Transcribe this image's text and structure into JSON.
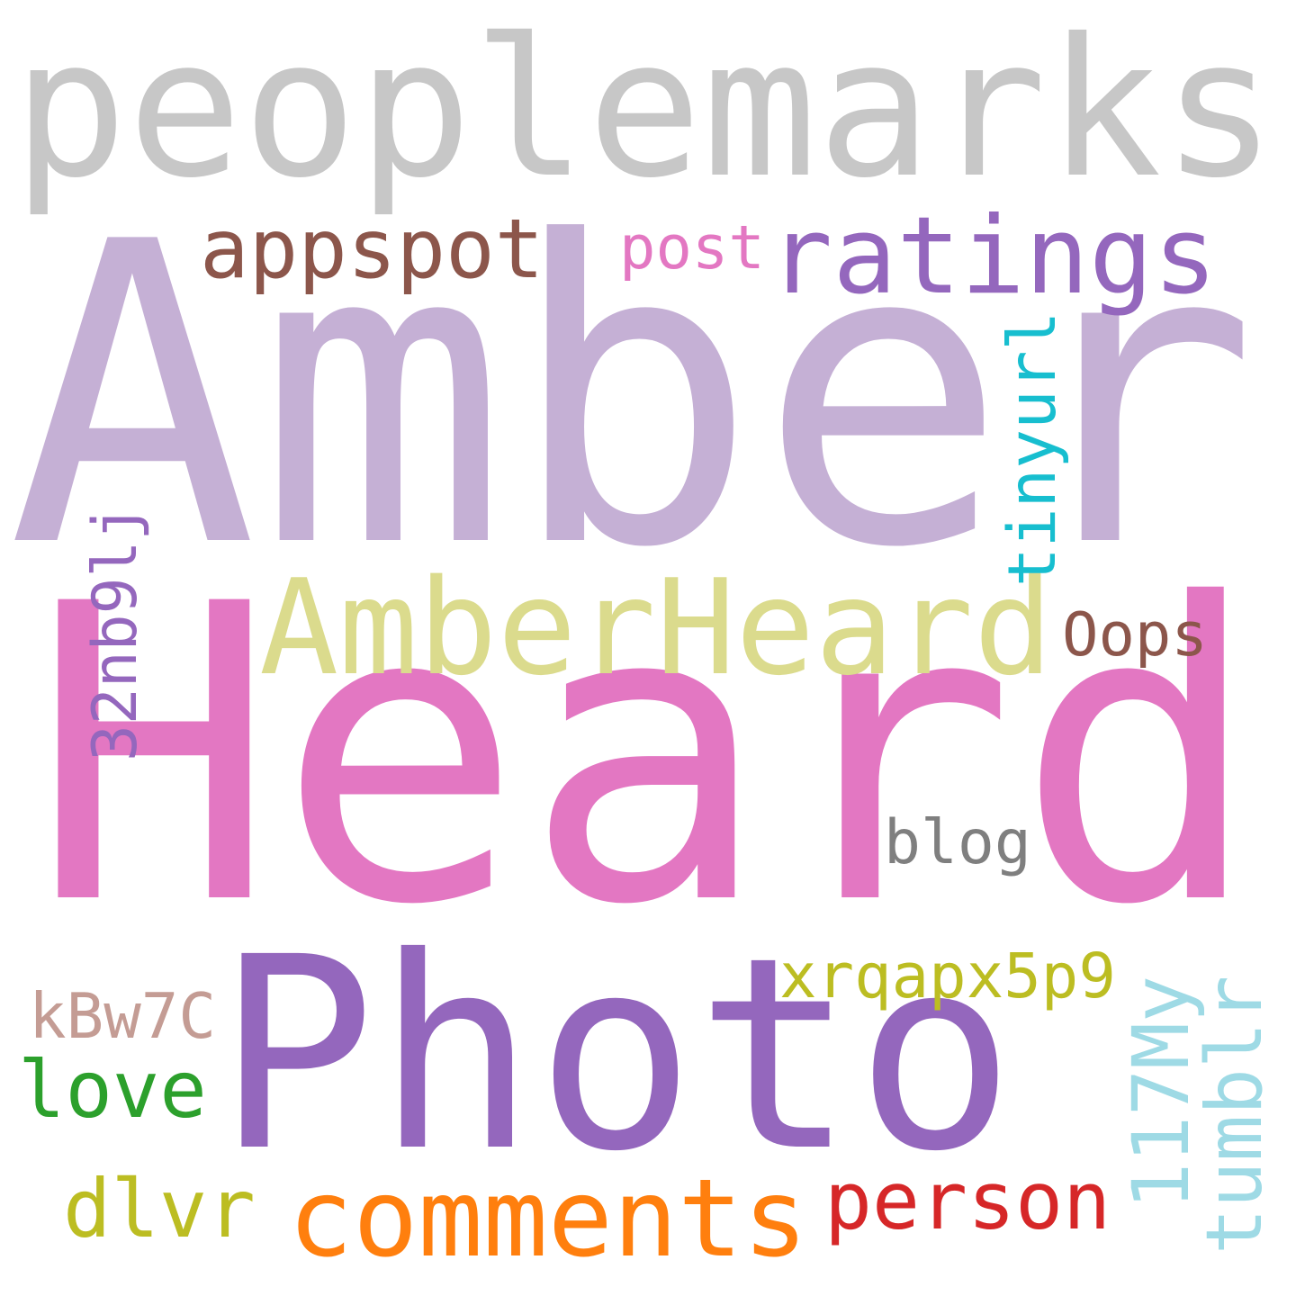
{
  "words": [
    {
      "key": "peoplemarks",
      "text": "peoplemarks",
      "color": "#c7c7c7"
    },
    {
      "key": "amber",
      "text": "Amber",
      "color": "#c5b0d5"
    },
    {
      "key": "heard",
      "text": "Heard",
      "color": "#e377c2"
    },
    {
      "key": "photo",
      "text": "Photo",
      "color": "#9467bd"
    },
    {
      "key": "amberheard",
      "text": "AmberHeard",
      "color": "#dbdb8d"
    },
    {
      "key": "ratings",
      "text": "ratings",
      "color": "#9467bd"
    },
    {
      "key": "appspot",
      "text": "appspot",
      "color": "#8c564b"
    },
    {
      "key": "post",
      "text": "post",
      "color": "#e377c2"
    },
    {
      "key": "tinyurl",
      "text": "tinyurl",
      "color": "#17becf"
    },
    {
      "key": "code32",
      "text": "32nb9lj",
      "color": "#9467bd"
    },
    {
      "key": "oops",
      "text": "Oops",
      "color": "#8c564b"
    },
    {
      "key": "blog",
      "text": "blog",
      "color": "#7f7f7f"
    },
    {
      "key": "xrq",
      "text": "xrqapx5p9",
      "color": "#bcbd22"
    },
    {
      "key": "kbw",
      "text": "kBw7C",
      "color": "#c49c94"
    },
    {
      "key": "love",
      "text": "love",
      "color": "#2ca02c"
    },
    {
      "key": "dlvr",
      "text": "dlvr",
      "color": "#bcbd22"
    },
    {
      "key": "comments",
      "text": "comments",
      "color": "#ff7f0e"
    },
    {
      "key": "person",
      "text": "person",
      "color": "#d62728"
    },
    {
      "key": "my117",
      "text": "117My",
      "color": "#9edae5"
    },
    {
      "key": "tumblr",
      "text": "tumblr",
      "color": "#9edae5"
    }
  ]
}
